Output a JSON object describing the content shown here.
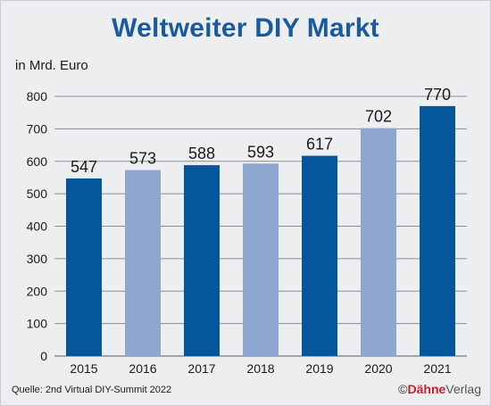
{
  "title": "Weltweiter DIY Markt",
  "unit_label": "in Mrd. Euro",
  "source": "Quelle: 2nd Virtual DIY-Summit 2022",
  "publisher": {
    "copyright": "©",
    "brand": "Dähne",
    "rest": "Verlag"
  },
  "colors": {
    "dark": "#03579a",
    "light": "#8ea7d0",
    "title": "#1a5a9e",
    "grid": "#8a8d91"
  },
  "chart_data": {
    "type": "bar",
    "categories": [
      "2015",
      "2016",
      "2017",
      "2018",
      "2019",
      "2020",
      "2021"
    ],
    "values": [
      547,
      573,
      588,
      593,
      617,
      702,
      770
    ],
    "bar_shade": [
      "dark",
      "light",
      "dark",
      "light",
      "dark",
      "light",
      "dark"
    ],
    "ylim": [
      0,
      800
    ],
    "yticks": [
      0,
      100,
      200,
      300,
      400,
      500,
      600,
      700,
      800
    ],
    "grid": true,
    "title": "Weltweiter DIY Markt",
    "ylabel": "in Mrd. Euro",
    "xlabel": ""
  }
}
